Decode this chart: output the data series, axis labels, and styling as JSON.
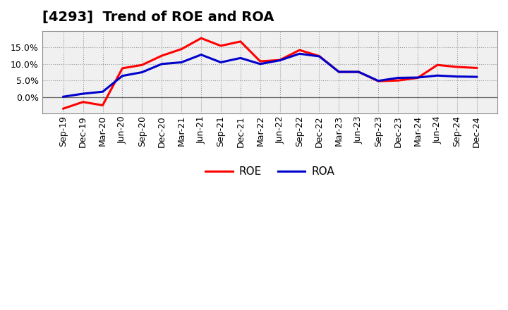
{
  "title": "[4293]  Trend of ROE and ROA",
  "x_labels": [
    "Sep-19",
    "Dec-19",
    "Mar-20",
    "Jun-20",
    "Sep-20",
    "Dec-20",
    "Mar-21",
    "Jun-21",
    "Sep-21",
    "Dec-21",
    "Mar-22",
    "Jun-22",
    "Sep-22",
    "Dec-22",
    "Mar-23",
    "Jun-23",
    "Sep-23",
    "Dec-23",
    "Mar-24",
    "Jun-24",
    "Sep-24",
    "Dec-24"
  ],
  "ROE": [
    -3.5,
    -1.5,
    -2.5,
    8.7,
    9.7,
    12.5,
    14.5,
    17.8,
    15.5,
    16.8,
    10.8,
    11.2,
    14.2,
    12.4,
    7.6,
    7.6,
    4.8,
    5.0,
    5.8,
    9.7,
    9.1,
    8.8
  ],
  "ROA": [
    0.1,
    1.0,
    1.6,
    6.4,
    7.5,
    10.0,
    10.5,
    12.8,
    10.5,
    11.8,
    10.0,
    11.1,
    13.1,
    12.3,
    7.6,
    7.6,
    4.9,
    5.8,
    5.9,
    6.5,
    6.2,
    6.1
  ],
  "ROE_color": "#ff0000",
  "ROA_color": "#0000cc",
  "background_color": "#ffffff",
  "plot_bg_color": "#f0f0f0",
  "grid_color": "#999999",
  "border_color": "#888888",
  "ylim": [
    -5,
    20
  ],
  "ytick_vals": [
    0.0,
    5.0,
    10.0,
    15.0
  ],
  "line_width": 2.2,
  "legend_fontsize": 11,
  "title_fontsize": 14,
  "tick_fontsize": 9
}
